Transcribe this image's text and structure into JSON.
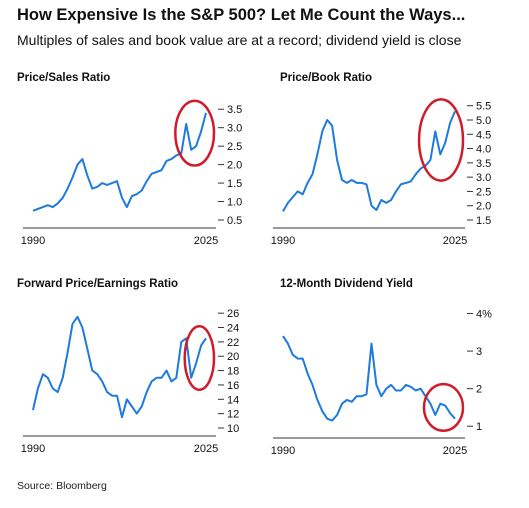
{
  "header": {
    "title": "How Expensive Is the S&P 500? Let Me Count the Ways...",
    "subtitle": "Multiples of sales and book value are at a record; dividend yield is close"
  },
  "footer": {
    "source": "Source: Bloomberg"
  },
  "colors": {
    "line": "#1f7ae0",
    "highlight": "#d01c2a",
    "axis": "#333333"
  },
  "chart_data": [
    {
      "type": "line",
      "title": "Price/Sales Ratio",
      "x_tick_labels": [
        "1990",
        "2025"
      ],
      "xlim": [
        1990,
        2025
      ],
      "ylim": [
        0.5,
        3.75
      ],
      "y_ticks": [
        0.5,
        1.0,
        1.5,
        2.0,
        2.5,
        3.0,
        3.5
      ],
      "y_tick_labels": [
        "0.5",
        "1.0",
        "1.5",
        "2.0",
        "2.5",
        "3.0",
        "3.5"
      ],
      "highlight_x": [
        2019.6,
        2025.0
      ],
      "series": [
        {
          "x": [
            1990,
            1991,
            1992,
            1993,
            1994,
            1995,
            1996,
            1997,
            1998,
            1999,
            2000,
            2001,
            2002,
            2003,
            2004,
            2005,
            2006,
            2007,
            2008,
            2009,
            2010,
            2011,
            2012,
            2013,
            2014,
            2015,
            2016,
            2017,
            2018,
            2019,
            2020,
            2021,
            2022,
            2023,
            2024,
            2025
          ],
          "y": [
            0.75,
            0.8,
            0.85,
            0.9,
            0.85,
            0.95,
            1.1,
            1.35,
            1.65,
            2.0,
            2.15,
            1.7,
            1.35,
            1.4,
            1.5,
            1.45,
            1.5,
            1.55,
            1.1,
            0.85,
            1.15,
            1.2,
            1.3,
            1.55,
            1.75,
            1.8,
            1.85,
            2.1,
            2.15,
            2.25,
            2.3,
            3.1,
            2.4,
            2.5,
            2.9,
            3.4
          ]
        }
      ]
    },
    {
      "type": "line",
      "title": "Price/Book Ratio",
      "x_tick_labels": [
        "1990",
        "2025"
      ],
      "xlim": [
        1990,
        2025
      ],
      "ylim": [
        1.5,
        5.7
      ],
      "y_ticks": [
        1.5,
        2.0,
        2.5,
        3.0,
        3.5,
        4.0,
        4.5,
        5.0,
        5.5
      ],
      "y_tick_labels": [
        "1.5",
        "2.0",
        "2.5",
        "3.0",
        "3.5",
        "4.0",
        "4.5",
        "5.0",
        "5.5"
      ],
      "highlight_x": [
        2018.5,
        2025.0
      ],
      "series": [
        {
          "x": [
            1990,
            1991,
            1992,
            1993,
            1994,
            1995,
            1996,
            1997,
            1998,
            1999,
            2000,
            2001,
            2002,
            2003,
            2004,
            2005,
            2006,
            2007,
            2008,
            2009,
            2010,
            2011,
            2012,
            2013,
            2014,
            2015,
            2016,
            2017,
            2018,
            2019,
            2020,
            2021,
            2022,
            2023,
            2024,
            2025
          ],
          "y": [
            1.8,
            2.1,
            2.3,
            2.5,
            2.4,
            2.8,
            3.1,
            3.8,
            4.6,
            5.0,
            4.8,
            3.6,
            2.9,
            2.8,
            2.9,
            2.8,
            2.8,
            2.75,
            2.0,
            1.85,
            2.2,
            2.1,
            2.2,
            2.5,
            2.75,
            2.8,
            2.85,
            3.1,
            3.3,
            3.4,
            3.6,
            4.6,
            3.8,
            4.2,
            4.9,
            5.3
          ]
        }
      ]
    },
    {
      "type": "line",
      "title": "Forward Price/Earnings Ratio",
      "x_tick_labels": [
        "1990",
        "2025"
      ],
      "xlim": [
        1990,
        2025
      ],
      "ylim": [
        10,
        27
      ],
      "y_ticks": [
        10,
        12,
        14,
        16,
        18,
        20,
        22,
        24,
        26
      ],
      "y_tick_labels": [
        "10",
        "12",
        "14",
        "16",
        "18",
        "20",
        "22",
        "24",
        "26"
      ],
      "highlight_x": [
        2021.5,
        2025.0
      ],
      "series": [
        {
          "x": [
            1990,
            1991,
            1992,
            1993,
            1994,
            1995,
            1996,
            1997,
            1998,
            1999,
            2000,
            2001,
            2002,
            2003,
            2004,
            2005,
            2006,
            2007,
            2008,
            2009,
            2010,
            2011,
            2012,
            2013,
            2014,
            2015,
            2016,
            2017,
            2018,
            2019,
            2020,
            2021,
            2022,
            2023,
            2024,
            2025
          ],
          "y": [
            12.5,
            15.5,
            17.5,
            17.0,
            15.5,
            15.0,
            17.0,
            20.5,
            24.5,
            25.5,
            24.0,
            21.0,
            18.0,
            17.5,
            16.5,
            15.0,
            14.5,
            14.5,
            11.5,
            14.0,
            13.0,
            12.0,
            13.0,
            15.0,
            16.5,
            17.0,
            17.0,
            18.0,
            16.5,
            17.0,
            22.0,
            22.5,
            17.0,
            19.0,
            21.5,
            22.5
          ]
        }
      ]
    },
    {
      "type": "line",
      "title": "12-Month Dividend Yield",
      "x_tick_labels": [
        "1990",
        "2025"
      ],
      "xlim": [
        1990,
        2025
      ],
      "ylim": [
        0.9,
        4.2
      ],
      "y_ticks": [
        1,
        2,
        3,
        4
      ],
      "y_tick_labels": [
        "1",
        "2",
        "3",
        "4%"
      ],
      "highlight_x": [
        2019.5,
        2025.0
      ],
      "series": [
        {
          "x": [
            1990,
            1991,
            1992,
            1993,
            1994,
            1995,
            1996,
            1997,
            1998,
            1999,
            2000,
            2001,
            2002,
            2003,
            2004,
            2005,
            2006,
            2007,
            2008,
            2009,
            2010,
            2011,
            2012,
            2013,
            2014,
            2015,
            2016,
            2017,
            2018,
            2019,
            2020,
            2021,
            2022,
            2023,
            2024,
            2025
          ],
          "y": [
            3.4,
            3.2,
            2.9,
            2.8,
            2.8,
            2.4,
            2.1,
            1.7,
            1.4,
            1.2,
            1.15,
            1.3,
            1.6,
            1.7,
            1.65,
            1.8,
            1.8,
            1.85,
            3.2,
            2.1,
            1.8,
            2.0,
            2.1,
            1.95,
            1.95,
            2.1,
            2.05,
            1.95,
            2.0,
            1.8,
            1.6,
            1.3,
            1.6,
            1.55,
            1.35,
            1.2
          ]
        }
      ]
    }
  ]
}
